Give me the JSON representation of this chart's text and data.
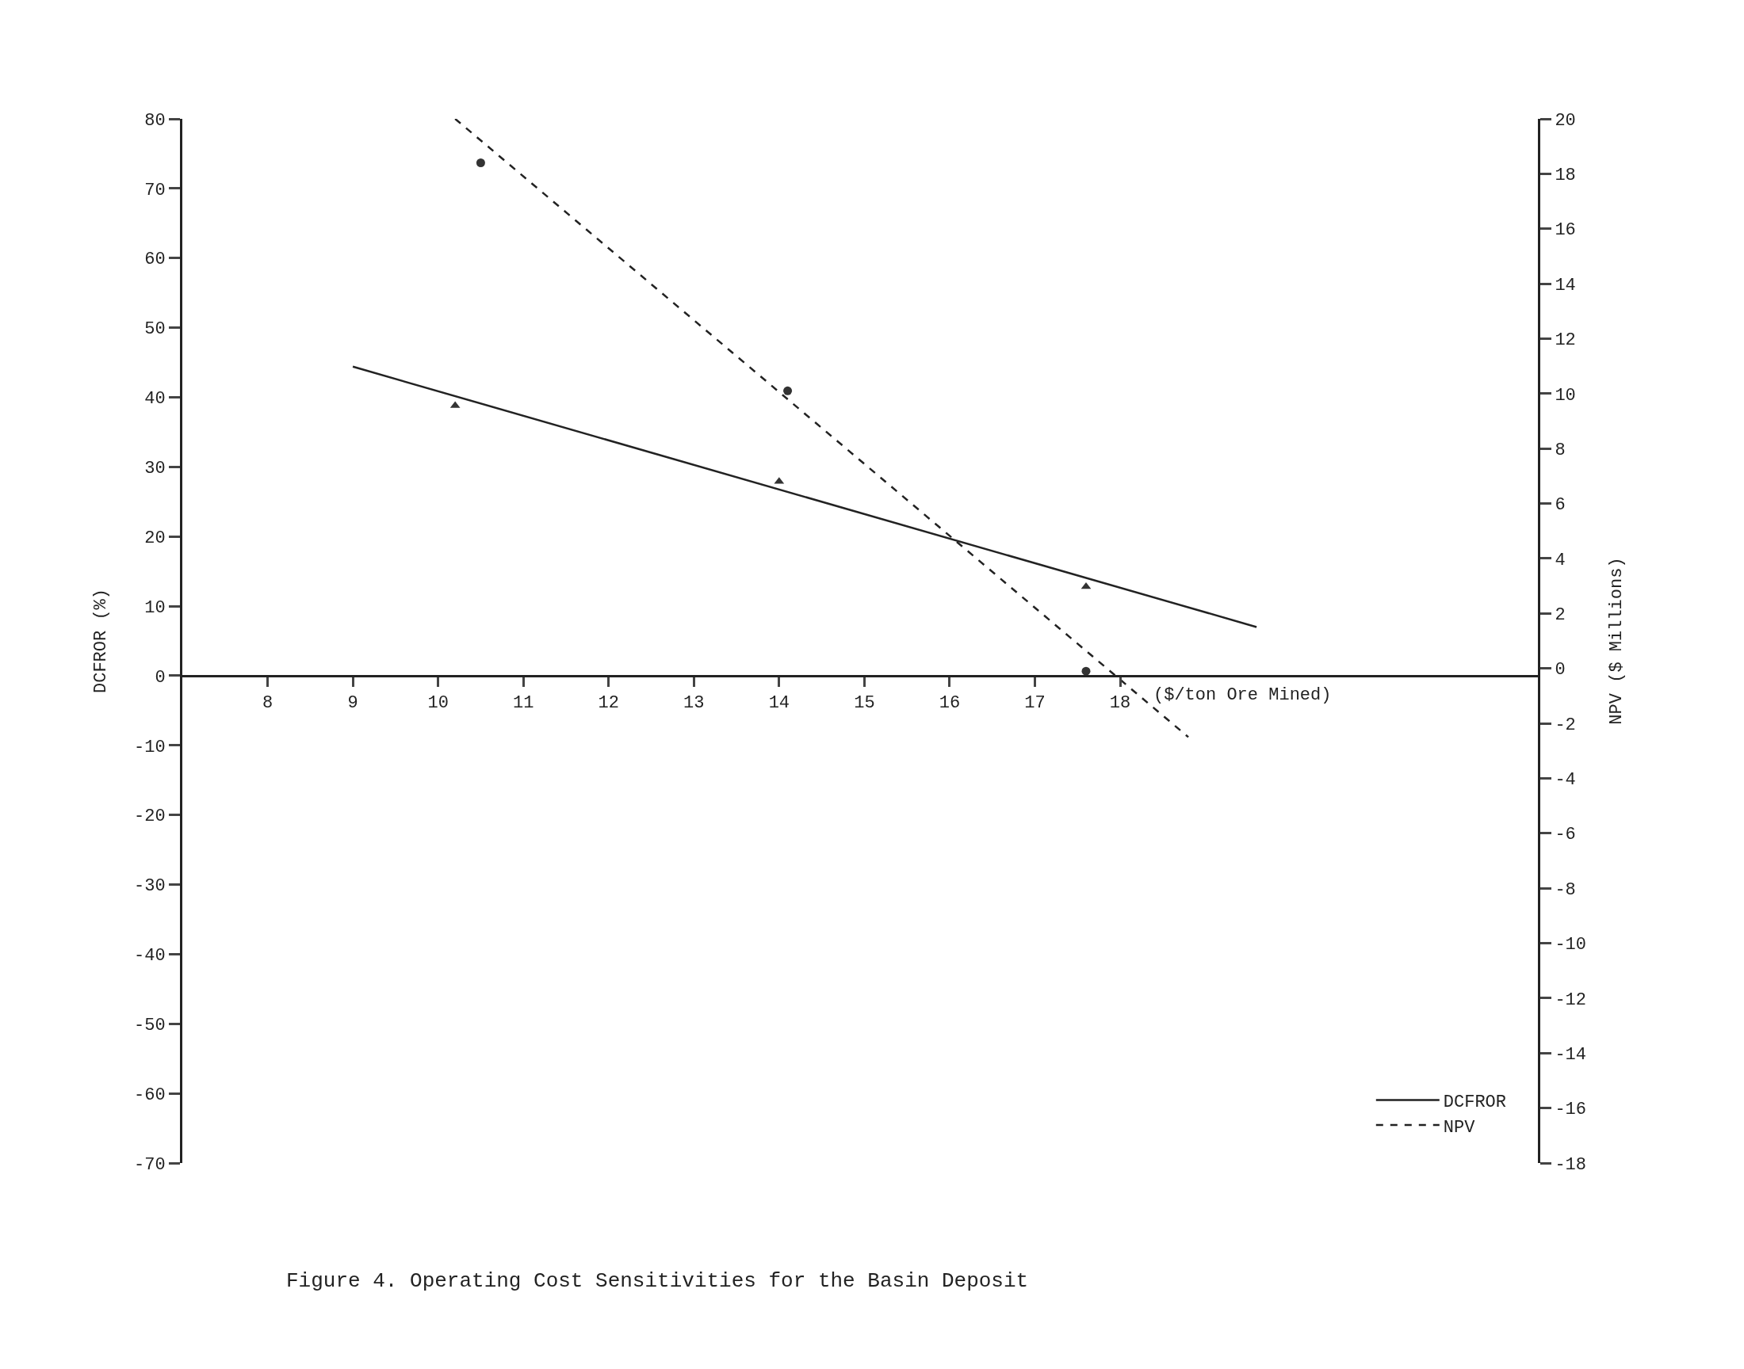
{
  "chart_data": {
    "type": "scatter",
    "title": "Figure 4. Operating Cost Sensitivities for the Basin Deposit",
    "xlabel": "($/ton Ore Mined)",
    "ylabel": "DCFROR (%)",
    "y2label": "NPV ($ Millions)",
    "xlim": [
      7,
      22.9
    ],
    "xticks": [
      8,
      9,
      10,
      11,
      12,
      13,
      14,
      15,
      16,
      17,
      18
    ],
    "ylim": [
      -70,
      80
    ],
    "yticks": [
      -70,
      -60,
      -50,
      -40,
      -30,
      -20,
      -10,
      0,
      10,
      20,
      30,
      40,
      50,
      60,
      70,
      80
    ],
    "y2lim": [
      -18,
      20
    ],
    "y2ticks": [
      -18,
      -16,
      -14,
      -12,
      -10,
      -8,
      -6,
      -4,
      -2,
      0,
      2,
      4,
      6,
      8,
      10,
      12,
      14,
      16,
      18,
      20
    ],
    "legend": "bottom right",
    "series": [
      {
        "marker": "triangle",
        "color": "#333333",
        "x": [
          10.2,
          14.0,
          17.6
        ],
        "values": [
          38.8,
          27.9,
          12.8
        ]
      },
      {
        "type": "line",
        "name": "DCFROR",
        "line_style": "solid",
        "color": "#222222",
        "x": [
          9.0,
          19.6
        ],
        "values": [
          44.4,
          7.0
        ]
      },
      {
        "marker": "circle",
        "axis": "y2",
        "color": "#333333",
        "x": [
          10.5,
          14.1,
          17.6
        ],
        "values": [
          18.4,
          10.1,
          -0.1
        ]
      },
      {
        "type": "line",
        "name": "NPV",
        "line_style": "dashed",
        "axis": "y2",
        "color": "#222222",
        "x": [
          10.2,
          18.8
        ],
        "values": [
          20.0,
          -2.5
        ]
      }
    ]
  }
}
